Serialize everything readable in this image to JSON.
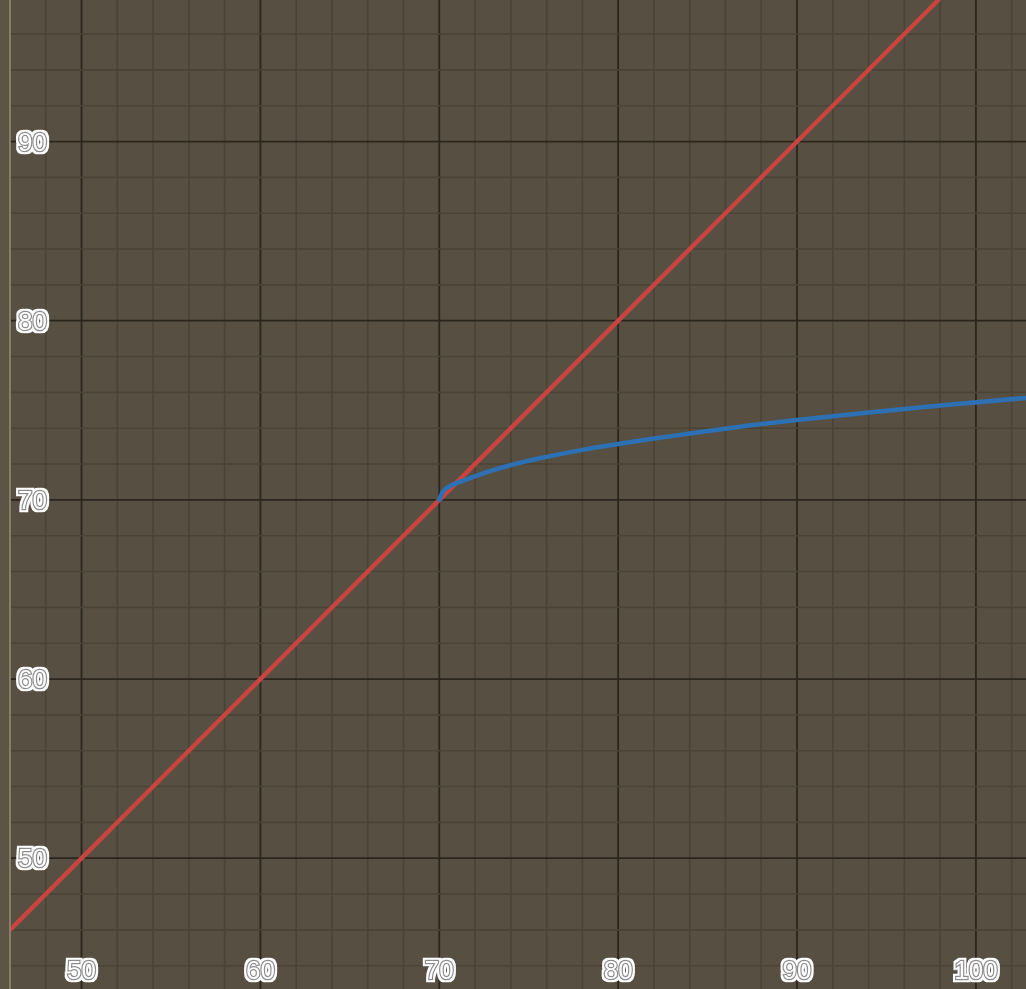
{
  "chart_data": {
    "type": "line",
    "xlim": [
      46,
      102.8
    ],
    "ylim": [
      42.7,
      97.9
    ],
    "xticks": [
      {
        "value": 48,
        "label": null
      },
      50,
      {
        "value": 52,
        "label": null
      },
      {
        "value": 54,
        "label": null
      },
      {
        "value": 56,
        "label": null
      },
      {
        "value": 58,
        "label": null
      },
      60,
      {
        "value": 62,
        "label": null
      },
      {
        "value": 64,
        "label": null
      },
      {
        "value": 66,
        "label": null
      },
      {
        "value": 68,
        "label": null
      },
      70,
      {
        "value": 72,
        "label": null
      },
      {
        "value": 74,
        "label": null
      },
      {
        "value": 76,
        "label": null
      },
      {
        "value": 78,
        "label": null
      },
      80,
      {
        "value": 82,
        "label": null
      },
      {
        "value": 84,
        "label": null
      },
      {
        "value": 86,
        "label": null
      },
      {
        "value": 88,
        "label": null
      },
      90,
      {
        "value": 92,
        "label": null
      },
      {
        "value": 94,
        "label": null
      },
      {
        "value": 96,
        "label": null
      },
      {
        "value": 98,
        "label": null
      },
      100,
      {
        "value": 102,
        "label": null
      }
    ],
    "yticks": [
      {
        "value": 44,
        "label": null
      },
      {
        "value": 46,
        "label": null
      },
      {
        "value": 48,
        "label": null
      },
      50,
      {
        "value": 52,
        "label": null
      },
      {
        "value": 54,
        "label": null
      },
      {
        "value": 56,
        "label": null
      },
      {
        "value": 58,
        "label": null
      },
      60,
      {
        "value": 62,
        "label": null
      },
      {
        "value": 64,
        "label": null
      },
      {
        "value": 66,
        "label": null
      },
      {
        "value": 68,
        "label": null
      },
      70,
      {
        "value": 72,
        "label": null
      },
      {
        "value": 74,
        "label": null
      },
      {
        "value": 76,
        "label": null
      },
      {
        "value": 78,
        "label": null
      },
      80,
      {
        "value": 82,
        "label": null
      },
      {
        "value": 84,
        "label": null
      },
      {
        "value": 86,
        "label": null
      },
      {
        "value": 88,
        "label": null
      },
      90,
      {
        "value": 92,
        "label": null
      },
      {
        "value": 94,
        "label": null
      },
      {
        "value": 96,
        "label": null
      }
    ],
    "grid": true,
    "series": [
      {
        "color": "#c74440",
        "x": [
          46,
          97.9
        ],
        "values": [
          46,
          97.9
        ]
      },
      {
        "color": "#2d70b3",
        "x": [
          70,
          70.2,
          70.6,
          71.2,
          72.1,
          74,
          76,
          78,
          80,
          82,
          84,
          86.4,
          90,
          94,
          98,
          102.8
        ],
        "values": [
          70,
          70.46,
          70.77,
          71.02,
          71.36,
          71.94,
          72.4,
          72.79,
          73.12,
          73.42,
          73.7,
          74.03,
          74.46,
          74.88,
          75.27,
          75.69
        ]
      }
    ]
  }
}
